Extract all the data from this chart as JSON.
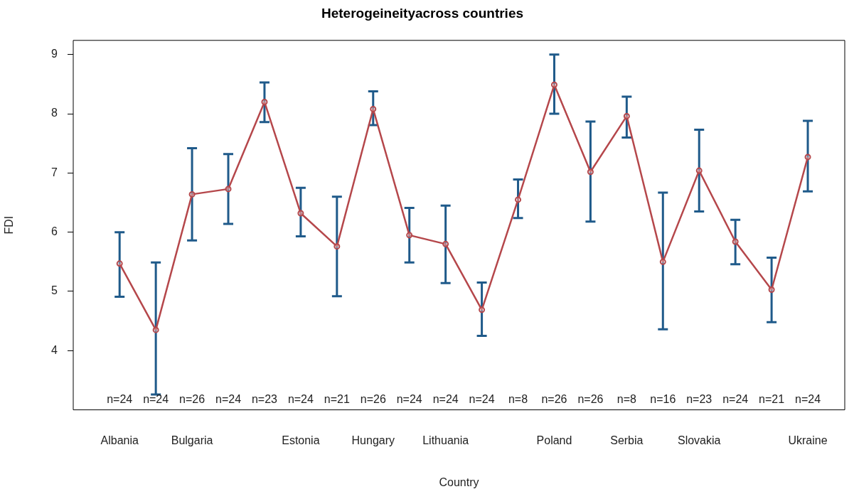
{
  "chart_data": {
    "type": "line",
    "title": "Heterogeineityacross countries",
    "xlabel": "Country",
    "ylabel": "FDI",
    "categories": [
      "Albania",
      null,
      "Bulgaria",
      null,
      null,
      "Estonia",
      null,
      "Hungary",
      null,
      "Lithuania",
      null,
      null,
      "Poland",
      null,
      "Serbia",
      null,
      "Slovakia",
      null,
      null,
      "Ukraine"
    ],
    "series": [
      {
        "color": "#b5474b",
        "values": [
          5.47,
          4.35,
          6.64,
          6.73,
          8.2,
          6.32,
          5.76,
          8.08,
          5.95,
          5.8,
          4.69,
          6.55,
          8.49,
          7.02,
          7.96,
          5.5,
          7.04,
          5.84,
          5.03,
          7.27
        ],
        "errors": [
          [
            4.91,
            6.0
          ],
          [
            3.26,
            5.49
          ],
          [
            5.86,
            7.42
          ],
          [
            6.14,
            7.32
          ],
          [
            7.86,
            8.53
          ],
          [
            5.93,
            6.75
          ],
          [
            4.92,
            6.6
          ],
          [
            7.81,
            8.38
          ],
          [
            5.49,
            6.41
          ],
          [
            5.14,
            6.45
          ],
          [
            4.25,
            5.15
          ],
          [
            6.24,
            6.89
          ],
          [
            8.0,
            9.0
          ],
          [
            6.18,
            7.87
          ],
          [
            7.6,
            8.29
          ],
          [
            4.36,
            6.67
          ],
          [
            6.35,
            7.73
          ],
          [
            5.46,
            6.21
          ],
          [
            4.48,
            5.57
          ],
          [
            6.69,
            7.88
          ]
        ]
      }
    ],
    "annotations": [
      "n=24",
      "n=24",
      "n=26",
      "n=24",
      "n=23",
      "n=24",
      "n=21",
      "n=26",
      "n=24",
      "n=24",
      "n=24",
      "n=8",
      "n=26",
      "n=26",
      "n=8",
      "n=16",
      "n=23",
      "n=24",
      "n=21",
      "n=24"
    ],
    "ylim": [
      3,
      9.24
    ],
    "yticks": [
      4,
      5,
      6,
      7,
      8,
      9
    ],
    "marker": "circle",
    "grid": false,
    "legend": false
  }
}
